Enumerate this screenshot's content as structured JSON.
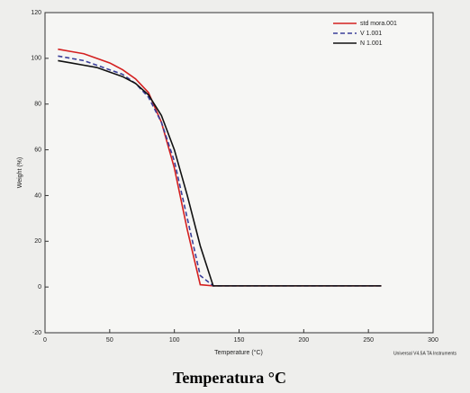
{
  "chart_data": {
    "type": "line",
    "y_label": "Weight (%)",
    "x_label": "Temperature (°C)",
    "caption": "Temperatura °C",
    "footer": "Universal V4.5A TA Instruments",
    "x": [
      10,
      20,
      30,
      40,
      50,
      60,
      70,
      80,
      90,
      100,
      110,
      120,
      130,
      150,
      200,
      260
    ],
    "series": [
      {
        "name": "std mora.001",
        "color": "#d42020",
        "dash": false,
        "values": [
          104,
          103,
          102,
          100,
          98,
          95,
          91,
          85,
          72,
          52,
          25,
          1,
          0.5,
          0.5,
          0.5,
          0.5
        ]
      },
      {
        "name": "V 1.001",
        "color": "#3a3f9a",
        "dash": true,
        "values": [
          101,
          100,
          99,
          97,
          95,
          93,
          89,
          83,
          72,
          55,
          30,
          5,
          0.5,
          0.5,
          0.5,
          0.5
        ]
      },
      {
        "name": "N 1.001",
        "color": "#111111",
        "dash": false,
        "values": [
          99,
          98,
          97,
          96,
          94,
          92,
          89,
          84,
          75,
          60,
          40,
          18,
          0.5,
          0.5,
          0.5,
          0.5
        ]
      }
    ],
    "xlim": [
      0,
      300
    ],
    "xticks": [
      0,
      50,
      100,
      150,
      200,
      250,
      300
    ],
    "ylim": [
      -20,
      120
    ],
    "yticks": [
      -20,
      0,
      20,
      40,
      60,
      80,
      100,
      120
    ],
    "legend": "upper right"
  }
}
